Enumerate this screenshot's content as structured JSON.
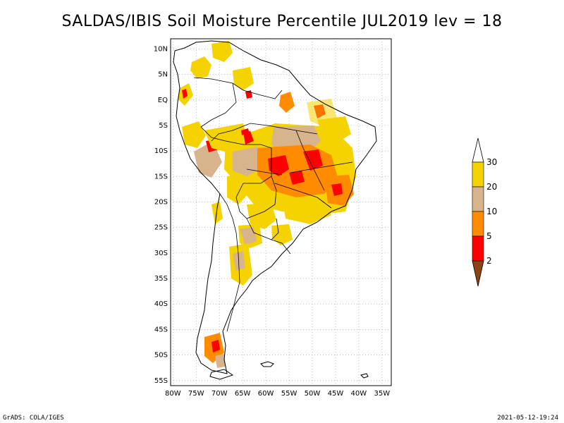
{
  "title": "SALDAS/IBIS Soil Moisture Percentile JUL2019 lev = 18",
  "map": {
    "lat_ticks": [
      "10N",
      "5N",
      "EQ",
      "5S",
      "10S",
      "15S",
      "20S",
      "25S",
      "30S",
      "35S",
      "40S",
      "45S",
      "50S",
      "55S"
    ],
    "lon_ticks": [
      "80W",
      "75W",
      "70W",
      "65W",
      "60W",
      "55W",
      "50W",
      "45W",
      "40W",
      "35W"
    ],
    "lon_range": [
      -80.5,
      -33
    ],
    "lat_range": [
      -56,
      12
    ],
    "grid": "dotted"
  },
  "legend": {
    "labels": [
      "30",
      "20",
      "10",
      "5",
      "2"
    ],
    "colors": {
      "above_30": "#ffffff",
      "20_30": "#f5d300",
      "10_20": "#d8b48c",
      "5_10": "#ff8c00",
      "2_5": "#ff0000",
      "below_2": "#8b4513"
    }
  },
  "footer": {
    "left": "GrADS: COLA/IGES",
    "right": "2021-05-12-19:24"
  }
}
